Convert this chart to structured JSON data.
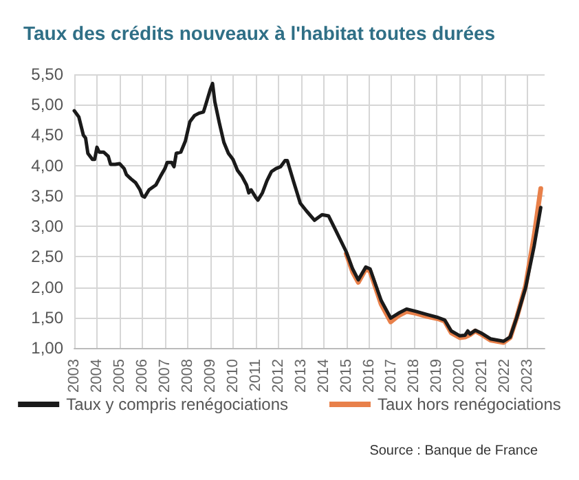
{
  "chart_data": {
    "type": "line",
    "title": "Taux des crédits nouveaux à l'habitat toutes durées",
    "annotations": [
      "Source : Banque de France"
    ],
    "xlim": [
      2003,
      2023.75
    ],
    "xticks": [
      2003,
      2004,
      2005,
      2006,
      2007,
      2008,
      2009,
      2010,
      2011,
      2012,
      2013,
      2014,
      2015,
      2016,
      2017,
      2018,
      2019,
      2020,
      2021,
      2022,
      2023
    ],
    "ylim": [
      1,
      5.5
    ],
    "yticks": [
      {
        "value": 1,
        "label": "1,00"
      },
      {
        "value": 1.5,
        "label": "1,50"
      },
      {
        "value": 2,
        "label": "2,00"
      },
      {
        "value": 2.5,
        "label": "2,50"
      },
      {
        "value": 3,
        "label": "3,00"
      },
      {
        "value": 3.5,
        "label": "3,50"
      },
      {
        "value": 4,
        "label": "4,00"
      },
      {
        "value": 4.5,
        "label": "4,50"
      },
      {
        "value": 5,
        "label": "5,00"
      },
      {
        "value": 5.5,
        "label": "5,50"
      }
    ],
    "grid": true,
    "legend": "bottom",
    "marker": "none",
    "line_style": "solid",
    "series": [
      {
        "name": "Taux y compris renégociations",
        "color": "#1a1a1a",
        "x": [
          2003.0,
          2003.2,
          2003.4,
          2003.5,
          2003.6,
          2003.8,
          2003.9,
          2004.0,
          2004.1,
          2004.3,
          2004.5,
          2004.6,
          2004.8,
          2005.0,
          2005.2,
          2005.3,
          2005.5,
          2005.7,
          2005.9,
          2006.0,
          2006.1,
          2006.3,
          2006.6,
          2006.8,
          2007.0,
          2007.1,
          2007.3,
          2007.4,
          2007.5,
          2007.7,
          2007.9,
          2008.1,
          2008.3,
          2008.5,
          2008.7,
          2008.8,
          2009.0,
          2009.1,
          2009.2,
          2009.4,
          2009.6,
          2009.8,
          2010.0,
          2010.2,
          2010.4,
          2010.6,
          2010.7,
          2010.8,
          2011.0,
          2011.1,
          2011.3,
          2011.5,
          2011.7,
          2011.9,
          2012.1,
          2012.3,
          2012.4,
          2012.68,
          2012.97,
          2013.25,
          2013.6,
          2013.93,
          2014.22,
          2014.5,
          2015.0,
          2015.28,
          2015.53,
          2015.86,
          2016.05,
          2016.54,
          2016.96,
          2017.3,
          2017.66,
          2018.08,
          2018.56,
          2019.05,
          2019.34,
          2019.63,
          2020.01,
          2020.24,
          2020.36,
          2020.46,
          2020.69,
          2020.98,
          2021.36,
          2021.65,
          2021.94,
          2022.23,
          2022.52,
          2022.91,
          2023.29,
          2023.58
        ],
        "values": [
          4.9,
          4.8,
          4.5,
          4.45,
          4.2,
          4.1,
          4.1,
          4.3,
          4.22,
          4.22,
          4.15,
          4.02,
          4.02,
          4.03,
          3.95,
          3.85,
          3.78,
          3.72,
          3.6,
          3.5,
          3.48,
          3.6,
          3.68,
          3.82,
          3.95,
          4.05,
          4.05,
          3.98,
          4.2,
          4.22,
          4.4,
          4.72,
          4.82,
          4.86,
          4.88,
          5.0,
          5.25,
          5.35,
          5.05,
          4.7,
          4.38,
          4.2,
          4.1,
          3.92,
          3.82,
          3.68,
          3.55,
          3.6,
          3.48,
          3.43,
          3.55,
          3.75,
          3.9,
          3.95,
          3.98,
          4.08,
          4.08,
          3.73,
          3.38,
          3.25,
          3.1,
          3.19,
          3.17,
          2.96,
          2.58,
          2.3,
          2.12,
          2.33,
          2.3,
          1.78,
          1.49,
          1.57,
          1.64,
          1.6,
          1.55,
          1.5,
          1.46,
          1.28,
          1.2,
          1.21,
          1.28,
          1.23,
          1.29,
          1.24,
          1.15,
          1.13,
          1.11,
          1.18,
          1.5,
          1.99,
          2.68,
          3.31
        ]
      },
      {
        "name": "Taux hors renégociations",
        "color": "#e8804a",
        "x": [
          2015.0,
          2015.28,
          2015.53,
          2015.86,
          2016.05,
          2016.54,
          2016.96,
          2017.3,
          2017.66,
          2018.08,
          2018.56,
          2019.05,
          2019.34,
          2019.63,
          2020.01,
          2020.24,
          2020.46,
          2020.69,
          2020.98,
          2021.36,
          2021.65,
          2021.94,
          2022.23,
          2022.52,
          2022.91,
          2023.29,
          2023.58
        ],
        "values": [
          2.55,
          2.25,
          2.08,
          2.3,
          2.26,
          1.72,
          1.43,
          1.53,
          1.6,
          1.57,
          1.52,
          1.48,
          1.44,
          1.25,
          1.17,
          1.18,
          1.22,
          1.28,
          1.22,
          1.13,
          1.11,
          1.09,
          1.17,
          1.5,
          2.02,
          2.85,
          3.62
        ]
      }
    ]
  }
}
